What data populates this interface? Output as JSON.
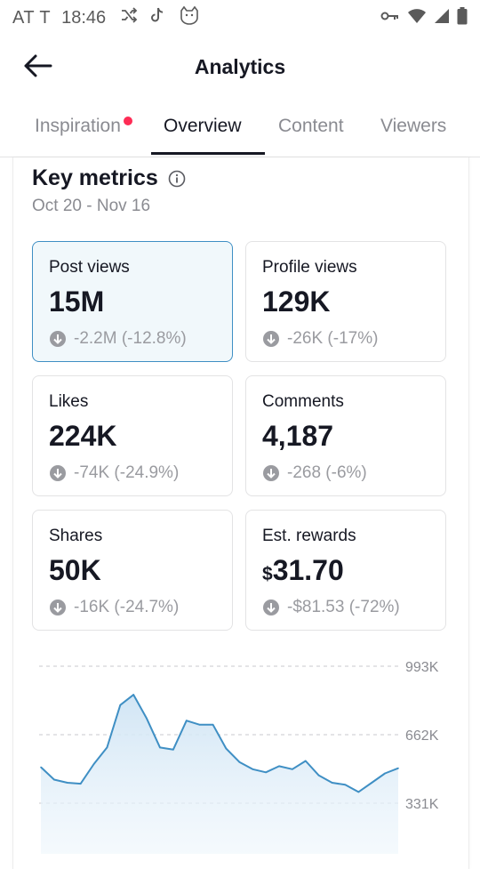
{
  "status_bar": {
    "carrier": "AT T",
    "time": "18:46",
    "icons": [
      "shuffle-icon",
      "tiktok-icon",
      "cat-icon",
      "key-icon",
      "wifi-icon",
      "signal-icon",
      "battery-icon"
    ]
  },
  "header": {
    "title": "Analytics",
    "back_icon": "arrow-left-icon"
  },
  "tabs": [
    {
      "label": "Inspiration",
      "has_dot": true
    },
    {
      "label": "Overview",
      "active": true
    },
    {
      "label": "Content"
    },
    {
      "label": "Viewers"
    }
  ],
  "key_metrics": {
    "title": "Key metrics",
    "date_range": "Oct 20 - Nov 16",
    "cards": [
      {
        "label": "Post views",
        "value": "15M",
        "change": "-2.2M (-12.8%)",
        "selected": true
      },
      {
        "label": "Profile views",
        "value": "129K",
        "change": "-26K (-17%)"
      },
      {
        "label": "Likes",
        "value": "224K",
        "change": "-74K (-24.9%)"
      },
      {
        "label": "Comments",
        "value": "4,187",
        "change": "-268 (-6%)"
      },
      {
        "label": "Shares",
        "value": "50K",
        "change": "-16K (-24.7%)"
      },
      {
        "label": "Est. rewards",
        "currency": "$",
        "value": "31.70",
        "change": "-$81.53 (-72%)"
      }
    ]
  },
  "colors": {
    "accent_blue": "#3f8fc4",
    "tab_dot": "#fe2c55",
    "selected_bg": "#f1f8fb"
  },
  "chart_data": {
    "type": "area",
    "ytick_labels": [
      "993K",
      "662K",
      "331K"
    ],
    "ytick_values": [
      993000,
      662000,
      331000
    ],
    "ylim": [
      0,
      993000
    ],
    "grid": true,
    "series": [
      {
        "values": [
          505000,
          445000,
          430000,
          425000,
          520000,
          600000,
          805000,
          855000,
          740000,
          600000,
          590000,
          730000,
          710000,
          710000,
          595000,
          530000,
          495000,
          480000,
          510000,
          495000,
          535000,
          465000,
          430000,
          420000,
          385000,
          430000,
          475000,
          500000
        ]
      }
    ]
  }
}
